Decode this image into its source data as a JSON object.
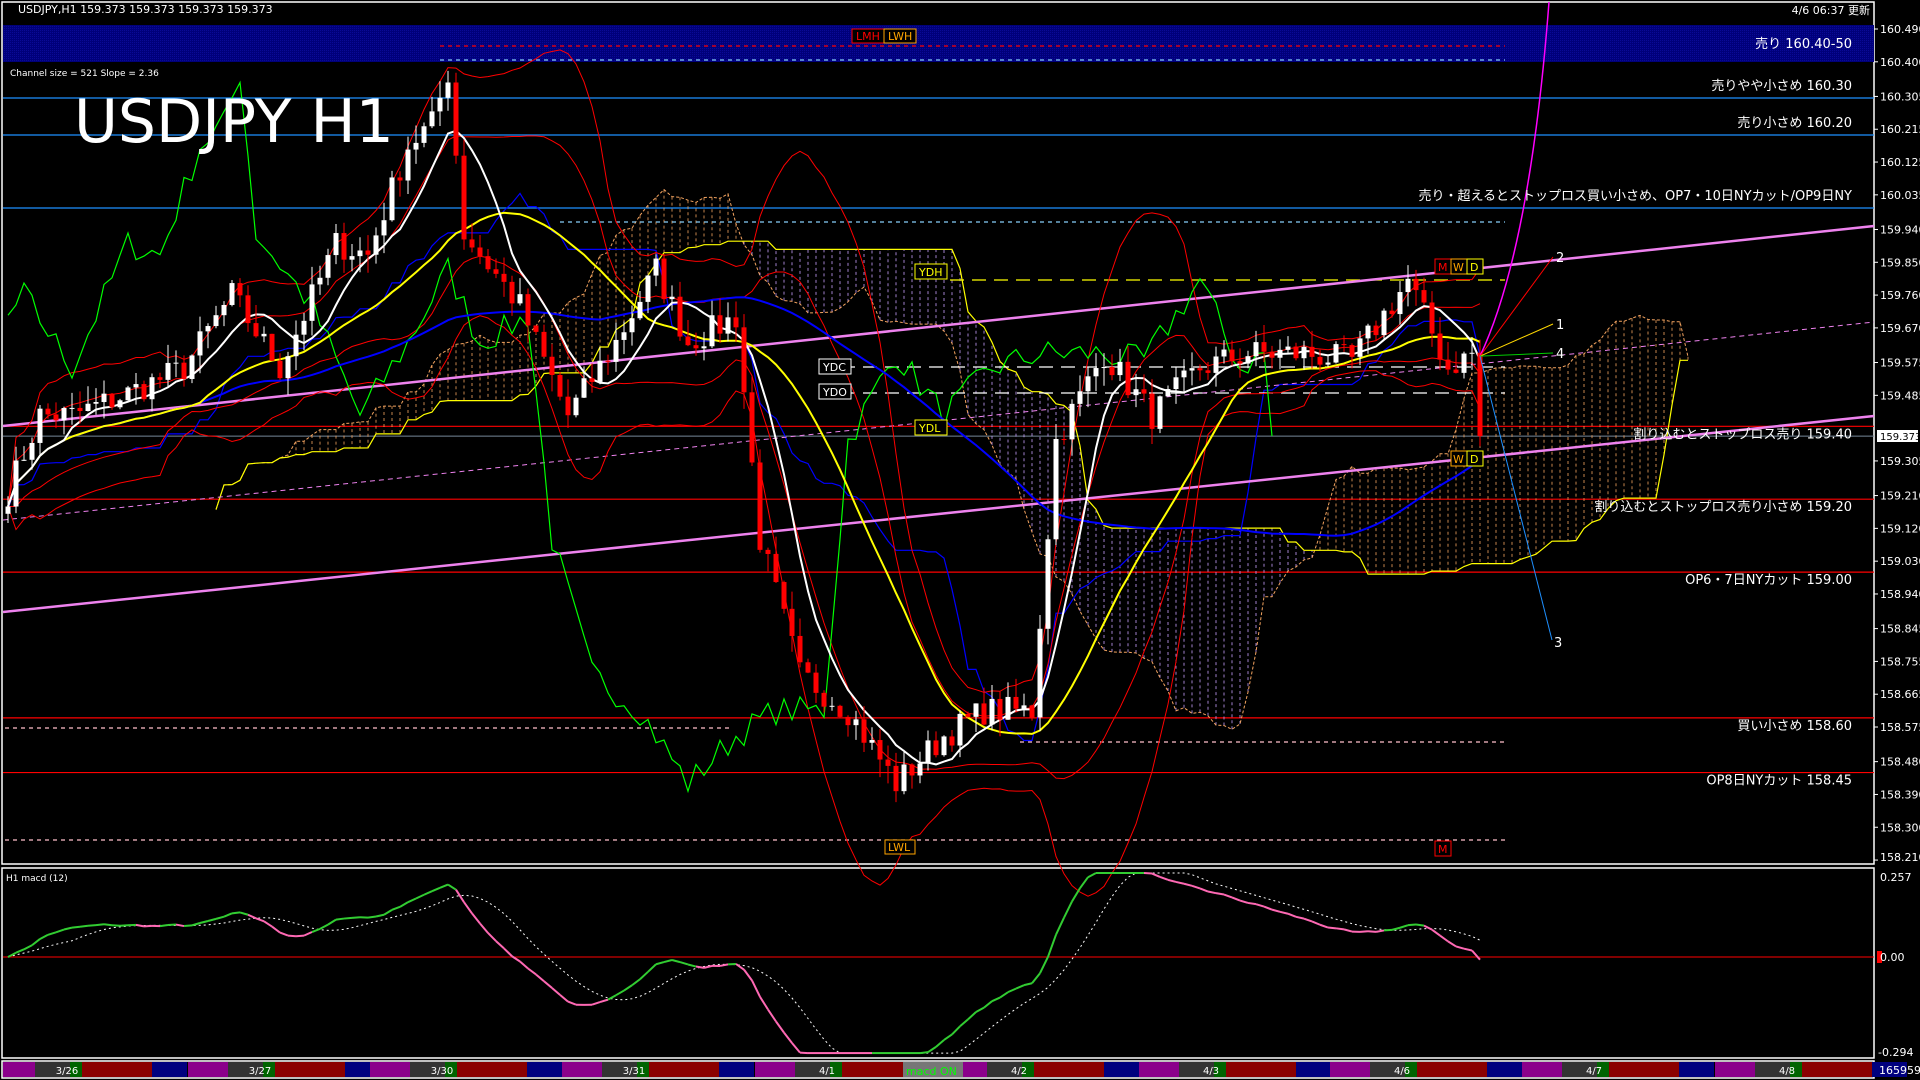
{
  "header": {
    "symbol_line": "USDJPY,H1  159.373 159.373 159.373 159.373",
    "update_time": "4/6 06:37 更新",
    "big_title": "USDJPY H1",
    "channel_info": "Channel size = 521 Slope = 2.36"
  },
  "colors": {
    "background": "#000000",
    "bull_candle": "#ffffff",
    "bear_candle": "#ff0000",
    "band": "#00007f",
    "level_blue": "#1e90ff",
    "level_red": "#ff0000",
    "channel": "#ee82ee",
    "ma_short": "#ffffff",
    "ma_mid": "#ffff00",
    "ma_long": "#0000ff",
    "macd_up": "#32cd32",
    "macd_down": "#ff69b4"
  },
  "chart_data": {
    "type": "candlestick",
    "symbol": "USDJPY",
    "timeframe": "H1",
    "last_price": 159.373,
    "ylim": [
      158.21,
      160.49
    ],
    "y_ticks": [
      "160.490",
      "160.400",
      "160.305",
      "160.215",
      "160.125",
      "160.035",
      "159.940",
      "159.850",
      "159.760",
      "159.670",
      "159.575",
      "159.485",
      "159.395",
      "159.305",
      "159.210",
      "159.120",
      "159.030",
      "158.940",
      "158.845",
      "158.755",
      "158.665",
      "158.575",
      "158.480",
      "158.390",
      "158.300",
      "158.210"
    ],
    "x_ticks": [
      "3/26",
      "3/27",
      "3/30",
      "3/31",
      "4/1",
      "4/2",
      "4/3",
      "4/6",
      "4/7",
      "4/8"
    ],
    "close_keypoints": [
      {
        "bar": 0,
        "close": 159.22
      },
      {
        "bar": 4,
        "close": 159.43
      },
      {
        "bar": 8,
        "close": 159.43
      },
      {
        "bar": 15,
        "close": 159.49
      },
      {
        "bar": 22,
        "close": 159.56
      },
      {
        "bar": 28,
        "close": 159.76
      },
      {
        "bar": 34,
        "close": 159.56
      },
      {
        "bar": 41,
        "close": 159.9
      },
      {
        "bar": 45,
        "close": 159.87
      },
      {
        "bar": 50,
        "close": 160.17
      },
      {
        "bar": 53,
        "close": 160.23
      },
      {
        "bar": 55,
        "close": 160.37
      },
      {
        "bar": 57,
        "close": 159.93
      },
      {
        "bar": 64,
        "close": 159.73
      },
      {
        "bar": 70,
        "close": 159.43
      },
      {
        "bar": 76,
        "close": 159.63
      },
      {
        "bar": 81,
        "close": 159.83
      },
      {
        "bar": 85,
        "close": 159.63
      },
      {
        "bar": 91,
        "close": 159.7
      },
      {
        "bar": 94,
        "close": 159.09
      },
      {
        "bar": 99,
        "close": 158.72
      },
      {
        "bar": 105,
        "close": 158.62
      },
      {
        "bar": 111,
        "close": 158.42
      },
      {
        "bar": 117,
        "close": 158.55
      },
      {
        "bar": 122,
        "close": 158.62
      },
      {
        "bar": 128,
        "close": 158.62
      },
      {
        "bar": 131,
        "close": 159.36
      },
      {
        "bar": 137,
        "close": 159.6
      },
      {
        "bar": 143,
        "close": 159.43
      },
      {
        "bar": 149,
        "close": 159.56
      },
      {
        "bar": 155,
        "close": 159.6
      },
      {
        "bar": 162,
        "close": 159.6
      },
      {
        "bar": 168,
        "close": 159.58
      },
      {
        "bar": 175,
        "close": 159.8
      },
      {
        "bar": 180,
        "close": 159.56
      },
      {
        "bar": 183,
        "close": 159.6
      },
      {
        "bar": 184,
        "close": 159.373
      }
    ],
    "levels": [
      {
        "price": 160.45,
        "label": "売り 160.40-50",
        "kind": "band"
      },
      {
        "price": 160.3,
        "label": "売りやや小さめ 160.30",
        "kind": "blue"
      },
      {
        "price": 160.2,
        "label": "売り小さめ 160.20",
        "kind": "blue"
      },
      {
        "price": 160.0,
        "label": "売り・超えるとストップロス買い小さめ、OP7・10日NYカット/OP9日NY",
        "kind": "blue"
      },
      {
        "price": 159.4,
        "label": "割り込むとストップロス売り 159.40",
        "kind": "red"
      },
      {
        "price": 159.2,
        "label": "割り込むとストップロス売り小さめ 159.20",
        "kind": "red"
      },
      {
        "price": 159.0,
        "label": "OP6・7日NYカット 159.00",
        "kind": "red"
      },
      {
        "price": 158.6,
        "label": "買い小さめ 158.60",
        "kind": "red"
      },
      {
        "price": 158.45,
        "label": "OP8日NYカット 158.45",
        "kind": "red"
      }
    ],
    "markers": {
      "lmh": "LMH",
      "lwh": "LWH",
      "ydh": "YDH",
      "ydc": "YDC",
      "ydo": "YDO",
      "ydl": "YDL",
      "lwl": "LWL",
      "m": "M",
      "w": "W",
      "d": "D",
      "proj1": "1",
      "proj2": "2",
      "proj3": "3",
      "proj4": "4"
    },
    "macd": {
      "label": "H1 macd (12)",
      "ylim": [
        -0.294,
        0.257
      ],
      "y_ticks": [
        "0.257",
        "0.00",
        "-0.294"
      ],
      "status": "macd ON"
    },
    "volume_readout": "165959"
  }
}
